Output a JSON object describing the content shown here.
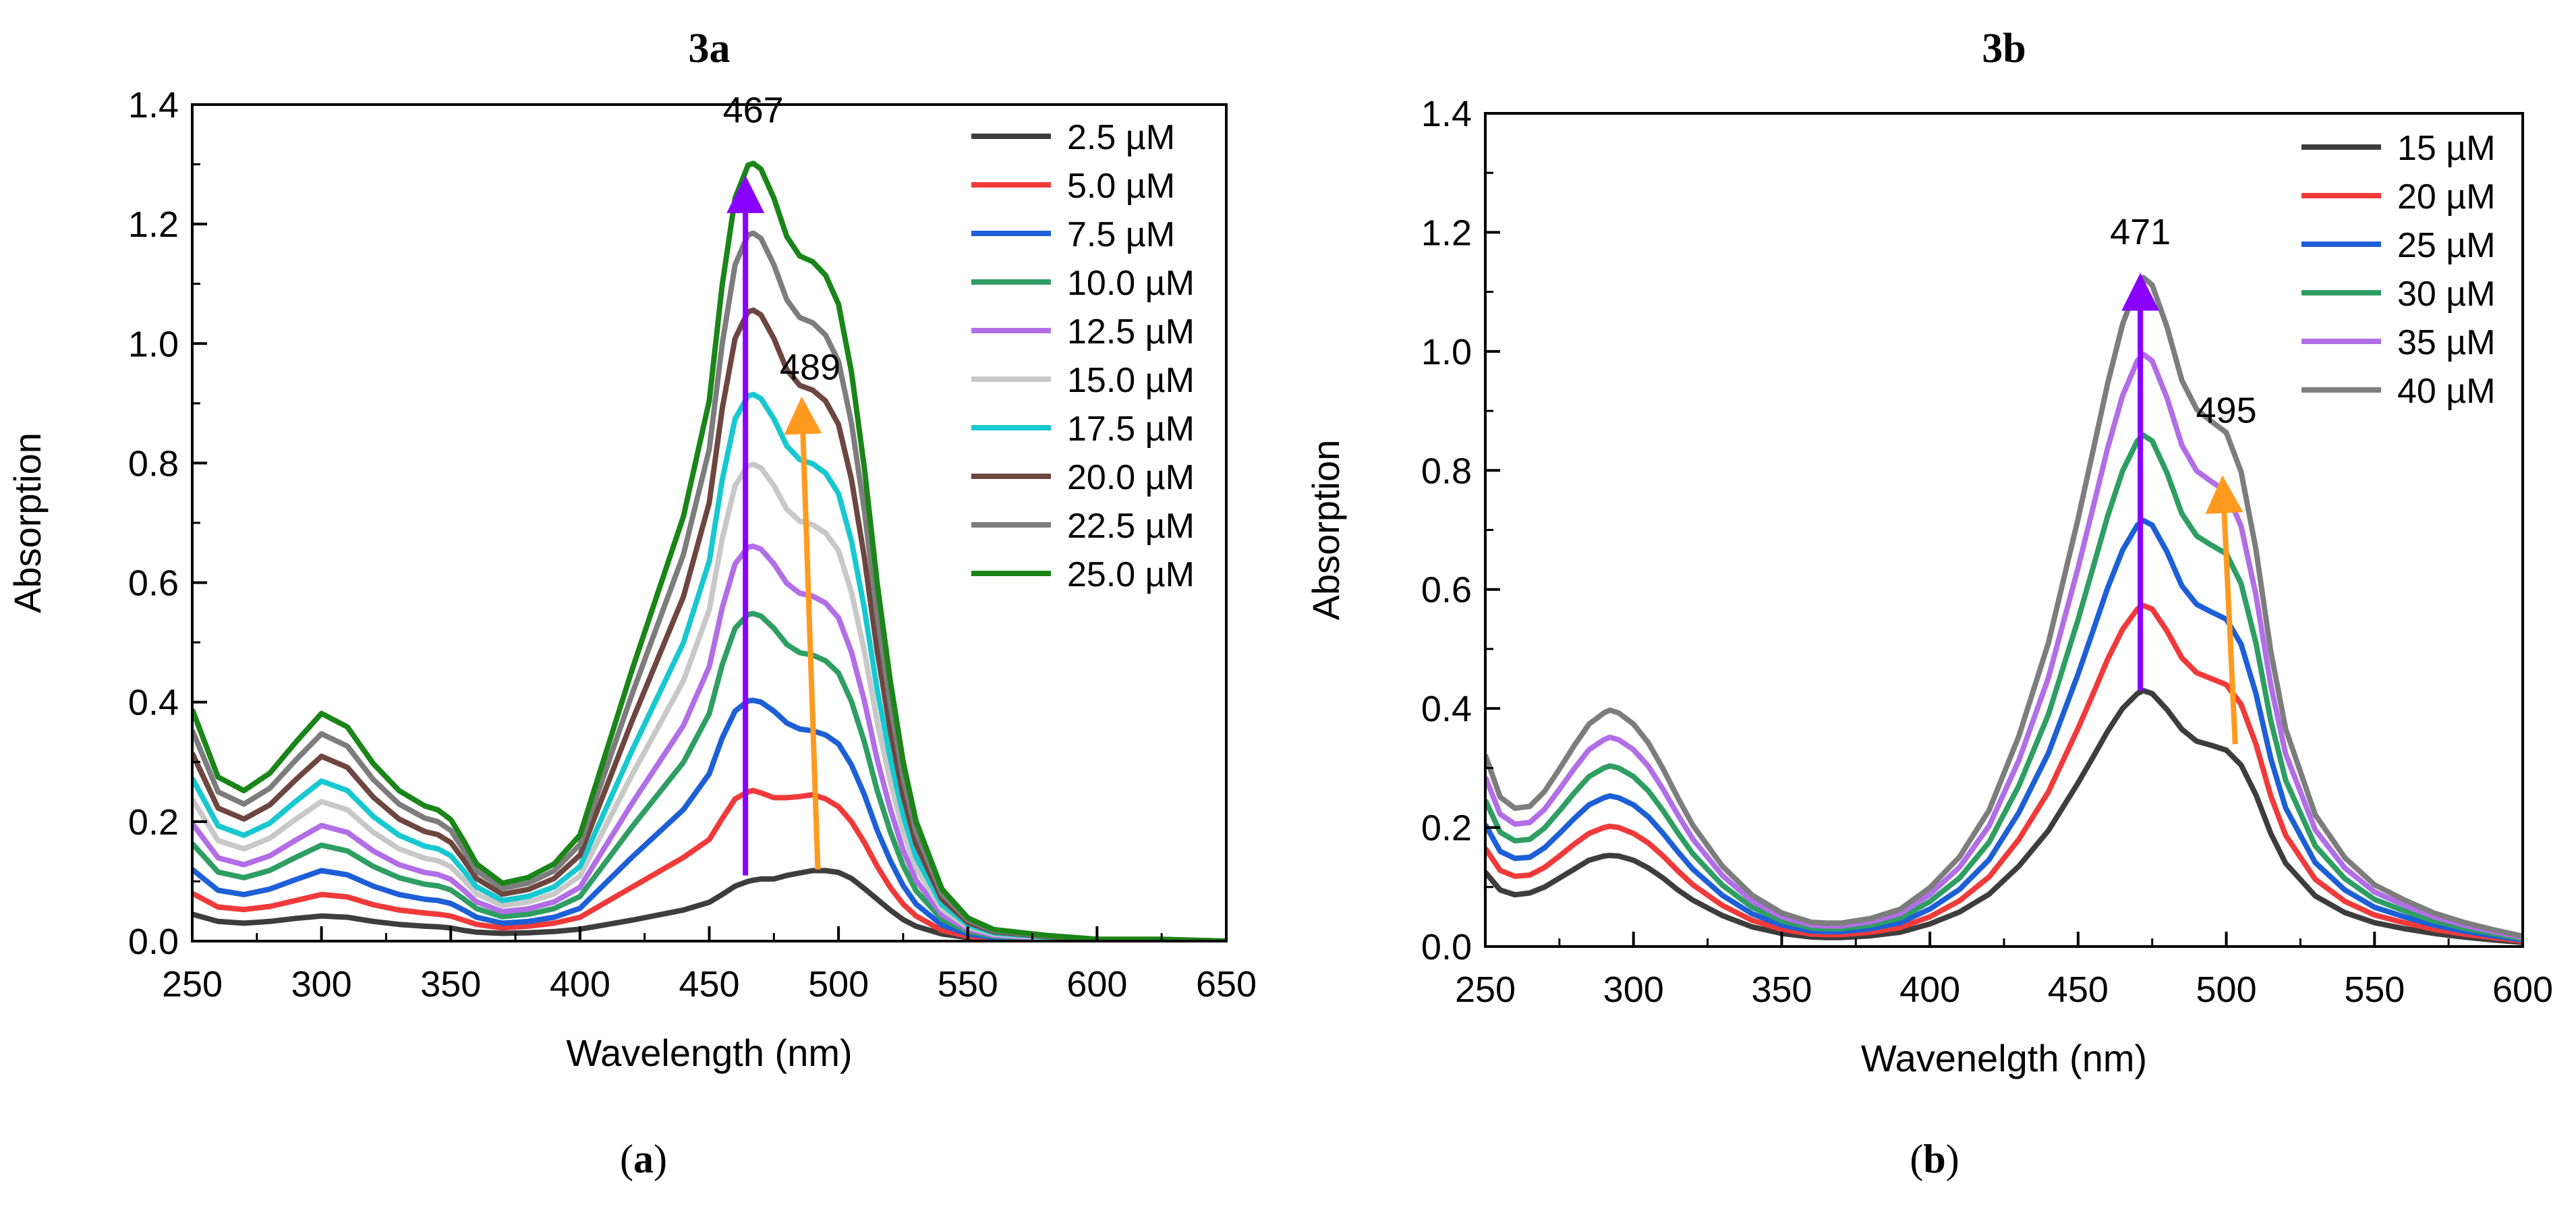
{
  "figure": {
    "panel_a_caption": "a",
    "panel_b_caption": "b"
  },
  "chart_data": [
    {
      "type": "line",
      "title": "3a",
      "xlabel": "Wavelength (nm)",
      "ylabel": "Absorption",
      "xlim": [
        250,
        650
      ],
      "ylim": [
        0,
        1.4
      ],
      "xticks": [
        "250",
        "300",
        "350",
        "400",
        "450",
        "500",
        "550",
        "600",
        "650"
      ],
      "yticks": [
        "0.0",
        "0.2",
        "0.4",
        "0.6",
        "0.8",
        "1.0",
        "1.2",
        "1.4"
      ],
      "legend_position": "top-right",
      "annotations": [
        {
          "text": "467",
          "x": 467,
          "y": 1.37
        },
        {
          "text": "489",
          "x": 489,
          "y": 0.94
        }
      ],
      "arrows": [
        {
          "color": "#8a00ff",
          "from": [
            464,
            0.11
          ],
          "to": [
            464,
            1.25
          ]
        },
        {
          "color": "#ff9a1f",
          "from": [
            492,
            0.12
          ],
          "to": [
            486,
            0.88
          ]
        }
      ],
      "x": [
        250,
        260,
        270,
        280,
        290,
        300,
        310,
        320,
        330,
        340,
        345,
        350,
        355,
        360,
        370,
        380,
        390,
        400,
        420,
        440,
        450,
        455,
        460,
        465,
        467,
        470,
        475,
        480,
        485,
        490,
        495,
        500,
        505,
        510,
        515,
        520,
        525,
        530,
        540,
        550,
        560,
        580,
        600,
        625,
        650
      ],
      "shape_scales": [
        0.42,
        0.52,
        0.63,
        0.73,
        0.83,
        0.92,
        0.97,
        1.0,
        1.0,
        1.0
      ],
      "series": [
        {
          "name": "2.5 µM",
          "color": "#3d3d3d",
          "values": [
            0.045,
            0.033,
            0.03,
            0.033,
            0.038,
            0.042,
            0.04,
            0.033,
            0.028,
            0.025,
            0.024,
            0.022,
            0.018,
            0.015,
            0.013,
            0.014,
            0.016,
            0.02,
            0.035,
            0.052,
            0.065,
            0.078,
            0.092,
            0.1,
            0.102,
            0.104,
            0.104,
            0.11,
            0.114,
            0.118,
            0.118,
            0.115,
            0.105,
            0.088,
            0.07,
            0.052,
            0.036,
            0.025,
            0.012,
            0.006,
            0.004,
            0.002,
            0.001,
            0.001,
            0.0
          ]
        },
        {
          "name": "5.0 µM",
          "color": "#f03a3a",
          "values": [
            0.08,
            0.057,
            0.053,
            0.058,
            0.068,
            0.078,
            0.074,
            0.061,
            0.052,
            0.047,
            0.045,
            0.042,
            0.035,
            0.028,
            0.022,
            0.025,
            0.03,
            0.04,
            0.09,
            0.14,
            0.17,
            0.205,
            0.238,
            0.25,
            0.252,
            0.248,
            0.24,
            0.24,
            0.242,
            0.245,
            0.238,
            0.225,
            0.2,
            0.165,
            0.125,
            0.09,
            0.062,
            0.042,
            0.018,
            0.008,
            0.005,
            0.002,
            0.001,
            0.001,
            0.0
          ]
        },
        {
          "name": "7.5 µM",
          "color": "#1d5fd6",
          "values": [
            0.12,
            0.085,
            0.078,
            0.087,
            0.103,
            0.118,
            0.111,
            0.092,
            0.078,
            0.07,
            0.068,
            0.063,
            0.052,
            0.04,
            0.03,
            0.033,
            0.04,
            0.055,
            0.14,
            0.22,
            0.28,
            0.34,
            0.385,
            0.402,
            0.403,
            0.4,
            0.385,
            0.365,
            0.355,
            0.352,
            0.345,
            0.33,
            0.295,
            0.245,
            0.185,
            0.135,
            0.093,
            0.062,
            0.027,
            0.012,
            0.006,
            0.003,
            0.001,
            0.001,
            0.0
          ]
        }
      ]
    },
    {
      "type": "line",
      "title": "3b",
      "xlabel": "Wavenelgth (nm)",
      "ylabel": "Absorption",
      "xlim": [
        250,
        600
      ],
      "ylim": [
        0,
        1.4
      ],
      "xticks": [
        "250",
        "300",
        "350",
        "400",
        "450",
        "500",
        "550",
        "600"
      ],
      "yticks": [
        "0.0",
        "0.2",
        "0.4",
        "0.6",
        "0.8",
        "1.0",
        "1.2",
        "1.4"
      ],
      "legend_position": "top-right",
      "annotations": [
        {
          "text": "471",
          "x": 471,
          "y": 1.18
        },
        {
          "text": "495",
          "x": 500,
          "y": 0.88
        }
      ],
      "arrows": [
        {
          "color": "#8a00ff",
          "from": [
            471,
            0.43
          ],
          "to": [
            471,
            1.1
          ]
        },
        {
          "color": "#ff9a1f",
          "from": [
            503,
            0.34
          ],
          "to": [
            499,
            0.76
          ]
        }
      ],
      "x": [
        250,
        255,
        260,
        265,
        270,
        275,
        280,
        285,
        290,
        292,
        295,
        300,
        305,
        310,
        315,
        320,
        330,
        340,
        350,
        360,
        365,
        370,
        380,
        390,
        400,
        410,
        420,
        430,
        440,
        450,
        455,
        460,
        465,
        470,
        472,
        475,
        480,
        485,
        490,
        495,
        500,
        505,
        510,
        515,
        520,
        530,
        540,
        550,
        560,
        570,
        580,
        590,
        600
      ],
      "series": [
        {
          "name": "15 µM",
          "color": "#3d3d3d",
          "values": [
            0.125,
            0.095,
            0.087,
            0.09,
            0.1,
            0.115,
            0.13,
            0.145,
            0.152,
            0.153,
            0.152,
            0.145,
            0.132,
            0.115,
            0.095,
            0.078,
            0.052,
            0.033,
            0.022,
            0.016,
            0.015,
            0.015,
            0.018,
            0.024,
            0.038,
            0.058,
            0.088,
            0.135,
            0.195,
            0.275,
            0.318,
            0.362,
            0.4,
            0.425,
            0.43,
            0.425,
            0.398,
            0.365,
            0.345,
            0.338,
            0.33,
            0.305,
            0.255,
            0.19,
            0.14,
            0.085,
            0.057,
            0.04,
            0.03,
            0.022,
            0.016,
            0.011,
            0.007
          ]
        },
        {
          "name": "20 µM",
          "color": "#f03a3a",
          "values": [
            0.165,
            0.128,
            0.118,
            0.12,
            0.133,
            0.152,
            0.172,
            0.19,
            0.2,
            0.202,
            0.2,
            0.19,
            0.174,
            0.152,
            0.127,
            0.104,
            0.069,
            0.044,
            0.029,
            0.021,
            0.02,
            0.02,
            0.024,
            0.032,
            0.05,
            0.077,
            0.117,
            0.18,
            0.26,
            0.367,
            0.424,
            0.483,
            0.533,
            0.567,
            0.573,
            0.567,
            0.53,
            0.485,
            0.46,
            0.45,
            0.44,
            0.407,
            0.34,
            0.253,
            0.187,
            0.113,
            0.076,
            0.053,
            0.04,
            0.029,
            0.021,
            0.015,
            0.009
          ]
        },
        {
          "name": "25 µM",
          "color": "#1d5fd6",
          "values": [
            0.205,
            0.16,
            0.148,
            0.15,
            0.166,
            0.19,
            0.215,
            0.238,
            0.25,
            0.253,
            0.25,
            0.238,
            0.218,
            0.19,
            0.159,
            0.13,
            0.086,
            0.055,
            0.036,
            0.026,
            0.025,
            0.025,
            0.03,
            0.04,
            0.063,
            0.096,
            0.146,
            0.225,
            0.325,
            0.458,
            0.53,
            0.603,
            0.666,
            0.708,
            0.716,
            0.708,
            0.663,
            0.606,
            0.575,
            0.562,
            0.55,
            0.508,
            0.425,
            0.316,
            0.233,
            0.141,
            0.095,
            0.066,
            0.05,
            0.036,
            0.026,
            0.018,
            0.011
          ]
        }
      ]
    }
  ]
}
